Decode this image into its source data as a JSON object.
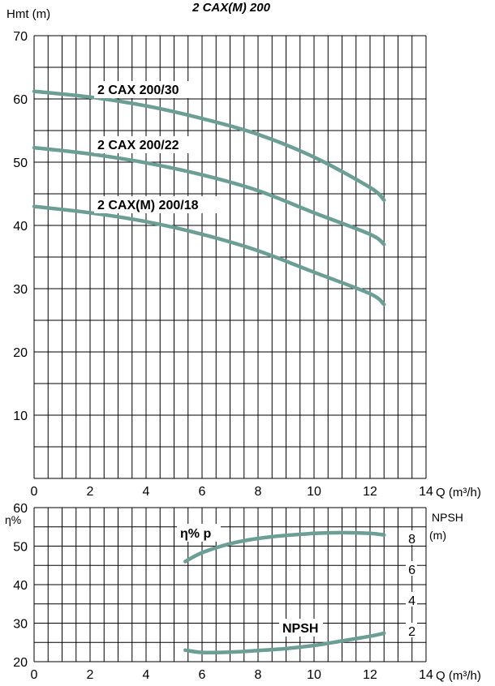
{
  "chart_data": [
    {
      "type": "line",
      "title": "2 CAX(M) 200",
      "ylabel": "Hmt (m)",
      "xlabel": "Q (m³/h)",
      "xlim": [
        0,
        14
      ],
      "ylim": [
        0,
        70
      ],
      "xticks": [
        "0",
        "2",
        "4",
        "6",
        "8",
        "10",
        "12",
        "14"
      ],
      "yticks": [
        "10",
        "20",
        "30",
        "40",
        "50",
        "60",
        "70"
      ],
      "grid": true,
      "series": [
        {
          "name": "2 CAX 200/30",
          "color": "#6b9e95",
          "x": [
            0,
            2,
            4,
            6,
            8,
            10,
            12,
            12.5
          ],
          "y": [
            61.2,
            60.3,
            58.9,
            56.9,
            54.4,
            50.8,
            46.0,
            44.0
          ]
        },
        {
          "name": "2 CAX 200/22",
          "color": "#6b9e95",
          "x": [
            0,
            2,
            4,
            6,
            8,
            10,
            12,
            12.5
          ],
          "y": [
            52.3,
            51.3,
            49.9,
            48.0,
            45.5,
            42.0,
            38.6,
            37.0
          ]
        },
        {
          "name": "2 CAX(M) 200/18",
          "color": "#6b9e95",
          "x": [
            0,
            2,
            4,
            6,
            8,
            10,
            12,
            12.5
          ],
          "y": [
            43.0,
            42.0,
            40.6,
            38.6,
            36.0,
            32.6,
            29.2,
            27.5
          ]
        }
      ]
    },
    {
      "type": "line",
      "ylabel": "η%",
      "y2label": "NPSH",
      "y2unit": "(m)",
      "xlabel": "Q (m³/h)",
      "xlim": [
        0,
        14
      ],
      "ylim": [
        20,
        60
      ],
      "y2lim": [
        0,
        10
      ],
      "xticks": [
        "0",
        "2",
        "4",
        "6",
        "8",
        "10",
        "12",
        "14"
      ],
      "yticks": [
        "20",
        "30",
        "40",
        "50",
        "60"
      ],
      "y2ticks": [
        "2",
        "4",
        "6",
        "8"
      ],
      "grid": true,
      "series": [
        {
          "name": "η% p",
          "axis": "left",
          "color": "#6b9e95",
          "x": [
            5.4,
            6,
            7,
            8,
            9,
            10,
            11,
            12,
            12.5
          ],
          "y": [
            46.0,
            48.3,
            50.6,
            52.0,
            52.8,
            53.3,
            53.5,
            53.3,
            52.9
          ]
        },
        {
          "name": "NPSH",
          "axis": "right",
          "color": "#6b9e95",
          "x": [
            5.4,
            6,
            7,
            8,
            9,
            10,
            11,
            12,
            12.5
          ],
          "y": [
            0.75,
            0.6,
            0.62,
            0.72,
            0.85,
            1.05,
            1.35,
            1.65,
            1.85
          ]
        }
      ]
    }
  ]
}
